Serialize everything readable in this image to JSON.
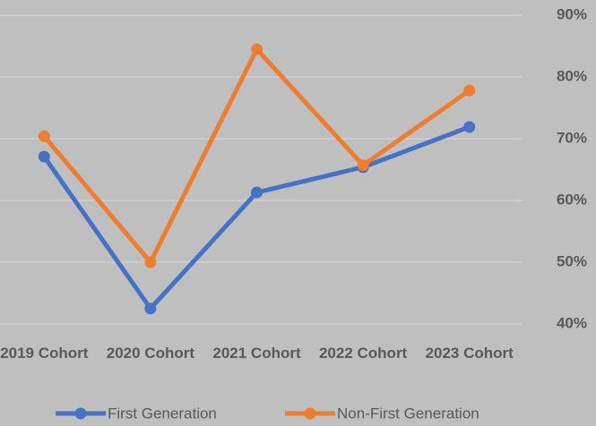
{
  "chart_data": {
    "type": "line",
    "categories": [
      "2019 Cohort",
      "2020 Cohort",
      "2021 Cohort",
      "2022 Cohort",
      "2023 Cohort"
    ],
    "series": [
      {
        "name": "First Generation",
        "color": "#4472c4",
        "values": [
          67.1,
          42.5,
          61.3,
          65.4,
          71.9
        ]
      },
      {
        "name": "Non-First Generation",
        "color": "#ed7d31",
        "values": [
          70.4,
          50.0,
          84.5,
          65.7,
          77.8
        ]
      }
    ],
    "ylim": [
      40,
      90
    ],
    "yticks": [
      {
        "value": 40,
        "label": "40%"
      },
      {
        "value": 50,
        "label": "50%"
      },
      {
        "value": 60,
        "label": "60%"
      },
      {
        "value": 70,
        "label": "70%"
      },
      {
        "value": 80,
        "label": "80%"
      },
      {
        "value": 90,
        "label": "90%"
      }
    ],
    "grid": true,
    "legend": "bottom"
  }
}
